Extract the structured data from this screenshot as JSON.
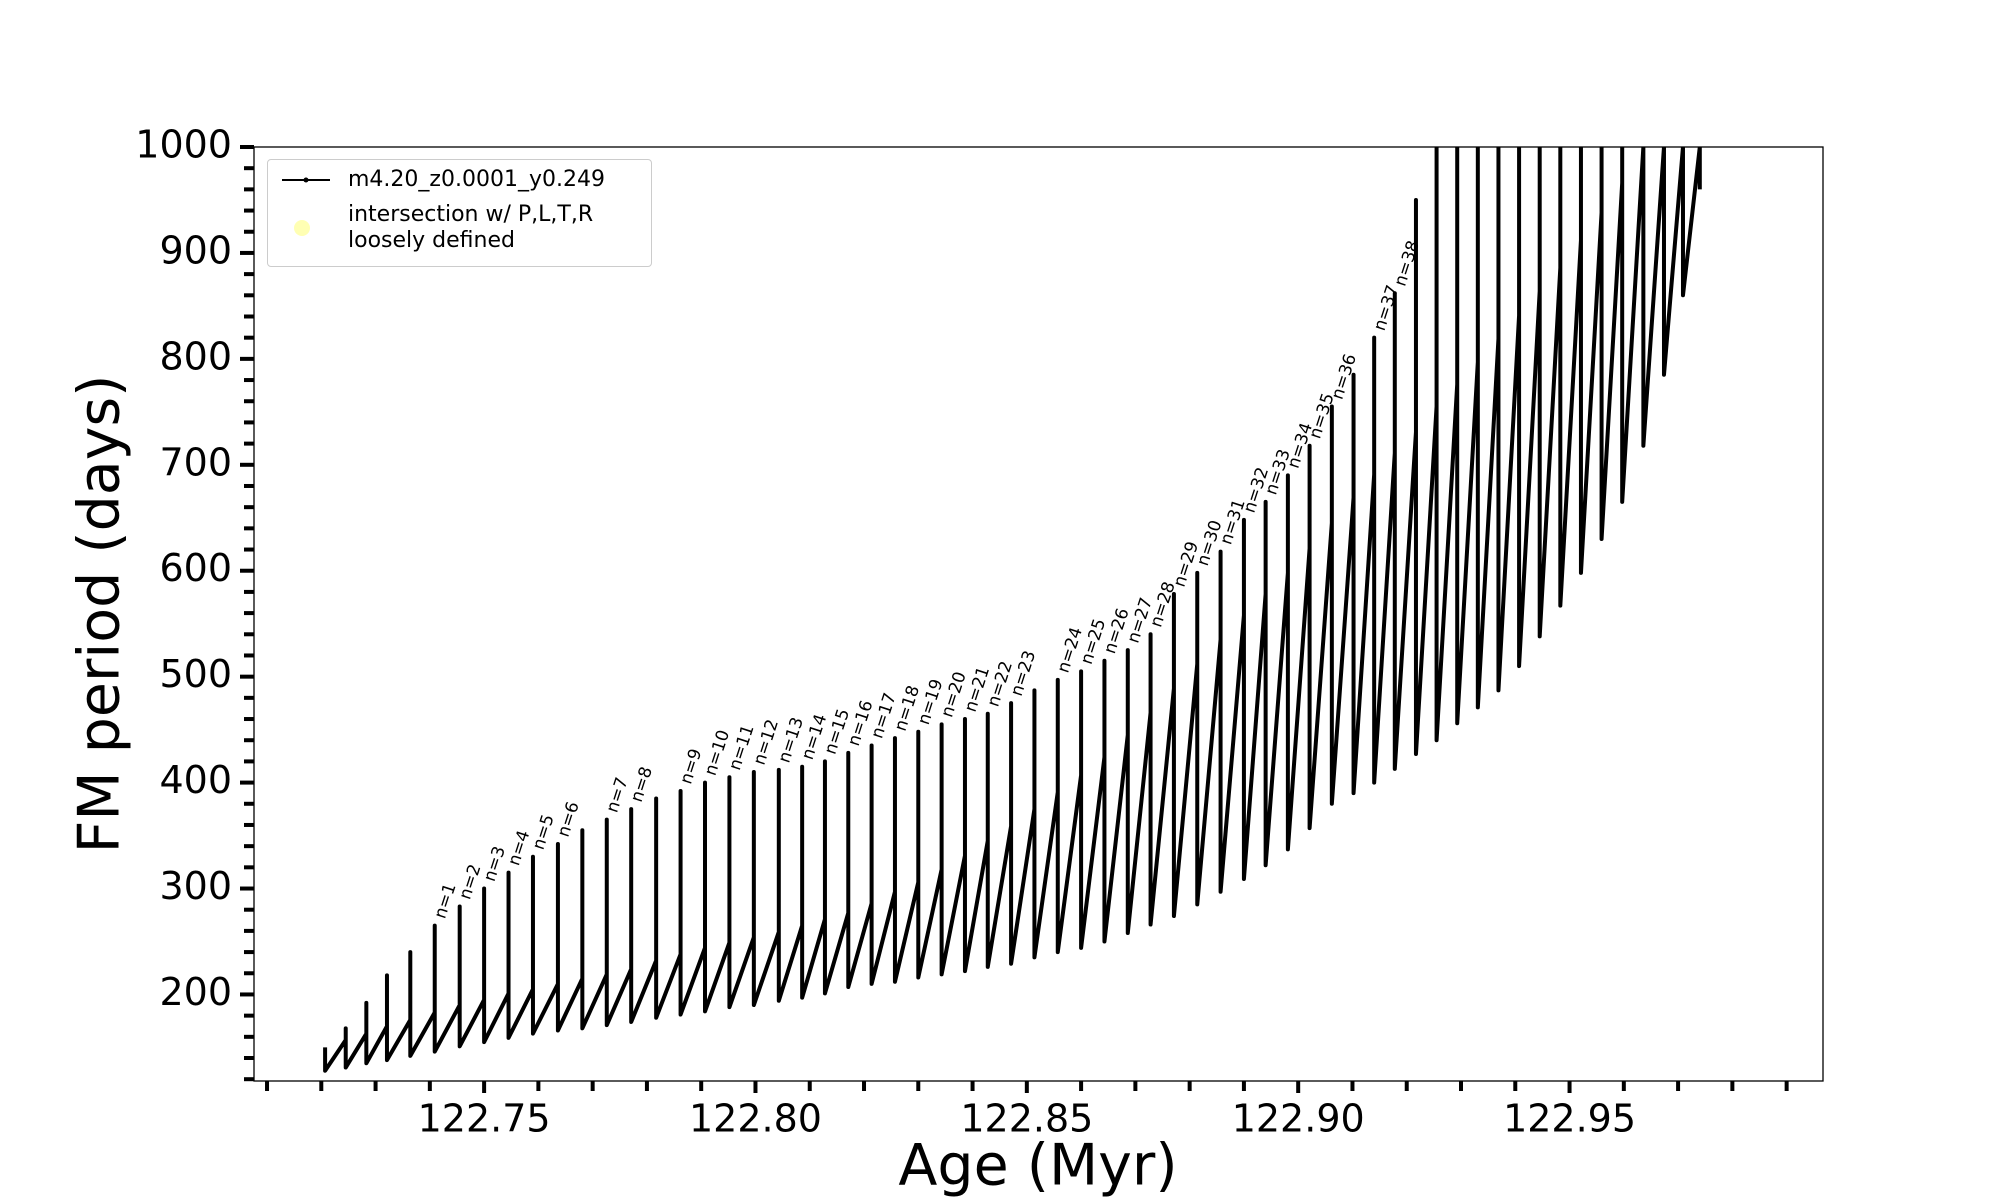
{
  "chart_data": {
    "type": "line",
    "xlabel": "Age (Myr)",
    "ylabel": "FM period (days)",
    "xlim": [
      122.7076,
      122.9967
    ],
    "ylim": [
      118.3,
      1000
    ],
    "xticks": [
      122.75,
      {
        "value": 122.8,
        "label": "122.80"
      },
      122.85,
      {
        "value": 122.9,
        "label": "122.90"
      },
      122.95
    ],
    "xminorticks": [
      122.71,
      122.72,
      122.73,
      122.74,
      122.76,
      122.77,
      122.78,
      122.79,
      122.81,
      122.82,
      122.83,
      122.84,
      122.86,
      122.87,
      122.88,
      122.89,
      122.91,
      122.92,
      122.93,
      122.94,
      122.96,
      122.97,
      122.98,
      122.99
    ],
    "yticks": [
      200,
      300,
      400,
      500,
      600,
      700,
      800,
      900,
      1000
    ],
    "yminorticks": [
      120,
      140,
      160,
      180,
      220,
      240,
      260,
      280,
      320,
      340,
      360,
      380,
      420,
      440,
      460,
      480,
      520,
      540,
      560,
      580,
      620,
      640,
      660,
      680,
      720,
      740,
      760,
      780,
      820,
      840,
      860,
      880,
      920,
      940,
      960,
      980
    ],
    "legend": "upper left",
    "series": [
      {
        "name": "m4.20_z0.0001_y0.249",
        "color": "#000000",
        "x": [
          122.7207,
          122.7207,
          122.7207,
          122.7245,
          122.7245,
          122.7245,
          122.7283,
          122.7283,
          122.7283,
          122.7321,
          122.7321,
          122.7321,
          122.7364,
          122.7364,
          122.7364,
          122.7409,
          122.7409,
          122.7409,
          122.7455,
          122.7455,
          122.7455,
          122.75,
          122.75,
          122.75,
          122.7545,
          122.7545,
          122.7545,
          122.759,
          122.759,
          122.759,
          122.7636,
          122.7636,
          122.7636,
          122.7681,
          122.7681,
          122.7681,
          122.7726,
          122.7726,
          122.7726,
          122.7771,
          122.7771,
          122.7771,
          122.7817,
          122.7817,
          122.7817,
          122.7862,
          122.7862,
          122.7862,
          122.7907,
          122.7907,
          122.7907,
          122.7952,
          122.7952,
          122.7952,
          122.7997,
          122.7997,
          122.7997,
          122.8043,
          122.8043,
          122.8043,
          122.8086,
          122.8086,
          122.8086,
          122.8128,
          122.8128,
          122.8128,
          122.8171,
          122.8171,
          122.8171,
          122.8214,
          122.8214,
          122.8214,
          122.8257,
          122.8257,
          122.8257,
          122.83,
          122.83,
          122.83,
          122.8343,
          122.8343,
          122.8343,
          122.8386,
          122.8386,
          122.8386,
          122.8428,
          122.8428,
          122.8428,
          122.8471,
          122.8471,
          122.8471,
          122.8514,
          122.8514,
          122.8514,
          122.8557,
          122.8557,
          122.8557,
          122.86,
          122.86,
          122.86,
          122.8643,
          122.8643,
          122.8643,
          122.8686,
          122.8686,
          122.8686,
          122.8728,
          122.8728,
          122.8728,
          122.8771,
          122.8771,
          122.8771,
          122.8814,
          122.8814,
          122.8814,
          122.8857,
          122.8857,
          122.8857,
          122.89,
          122.89,
          122.89,
          122.894,
          122.894,
          122.894,
          122.8981,
          122.8981,
          122.8981,
          122.9021,
          122.9021,
          122.9021,
          122.9062,
          122.9062,
          122.9062,
          122.9102,
          122.9102,
          122.9102,
          122.914,
          122.914,
          122.914,
          122.9178,
          122.9178,
          122.9178,
          122.9217,
          122.9217,
          122.9217,
          122.9255,
          122.9255,
          122.9255,
          122.9293,
          122.9293,
          122.9293,
          122.9331,
          122.9331,
          122.9331,
          122.9369,
          122.9369,
          122.9369,
          122.9407,
          122.9407,
          122.9407,
          122.9445,
          122.9445,
          122.9445,
          122.9483,
          122.9483,
          122.9483,
          122.9521,
          122.9521,
          122.9521,
          122.9559,
          122.9559,
          122.9559,
          122.9597,
          122.9597,
          122.9597,
          122.9636,
          122.9636,
          122.9636,
          122.9674,
          122.9674,
          122.9674,
          122.9709,
          122.9709,
          122.9709,
          122.974,
          122.974,
          122.974
        ],
        "values": [
          150,
          150,
          128,
          157,
          168,
          131,
          163,
          192,
          135,
          170,
          218,
          138,
          176,
          240,
          142,
          183,
          265,
          146,
          190,
          283,
          151,
          195,
          300,
          155,
          201,
          315,
          159,
          205,
          330,
          163,
          210,
          342,
          166,
          215,
          355,
          168,
          219,
          365,
          171,
          224,
          375,
          174,
          232,
          385,
          178,
          238,
          392,
          181,
          244,
          400,
          184,
          249,
          405,
          188,
          254,
          410,
          190,
          259,
          412,
          194,
          265,
          415,
          197,
          271,
          420,
          201,
          277,
          428,
          207,
          286,
          435,
          210,
          297,
          442,
          212,
          306,
          448,
          216,
          318,
          455,
          219,
          331,
          460,
          222,
          345,
          465,
          226,
          359,
          475,
          229,
          375,
          487,
          235,
          391,
          497,
          240,
          407,
          505,
          244,
          424,
          515,
          250,
          445,
          525,
          258,
          466,
          540,
          266,
          489,
          578,
          274,
          512,
          598,
          285,
          535,
          618,
          297,
          558,
          648,
          309,
          578,
          665,
          322,
          598,
          690,
          337,
          621,
          718,
          357,
          645,
          755,
          380,
          669,
          785,
          390,
          691,
          820,
          400,
          711,
          862,
          413,
          731,
          950,
          427,
          755,
          1000,
          440,
          776,
          1000,
          456,
          797,
          1000,
          471,
          819,
          1000,
          487,
          841,
          1000,
          510,
          864,
          1000,
          538,
          886,
          1000,
          567,
          912,
          1000,
          598,
          938,
          1000,
          630,
          966,
          1000,
          665,
          1000,
          1000,
          718,
          1000,
          1000,
          785,
          1000,
          1000,
          860,
          1000,
          1000,
          960
        ]
      },
      {
        "name": "intersection w/ P,L,T,R loosely defined",
        "color": "#ffffb3"
      }
    ],
    "annotations": [
      {
        "text": "n=1",
        "x": 122.7409,
        "y": 265
      },
      {
        "text": "n=2",
        "x": 122.7455,
        "y": 283
      },
      {
        "text": "n=3",
        "x": 122.75,
        "y": 300
      },
      {
        "text": "n=4",
        "x": 122.7545,
        "y": 315
      },
      {
        "text": "n=5",
        "x": 122.759,
        "y": 330
      },
      {
        "text": "n=6",
        "x": 122.7636,
        "y": 342
      },
      {
        "text": "n=7",
        "x": 122.7726,
        "y": 365
      },
      {
        "text": "n=8",
        "x": 122.7771,
        "y": 375
      },
      {
        "text": "n=9",
        "x": 122.7862,
        "y": 392
      },
      {
        "text": "n=10",
        "x": 122.7907,
        "y": 400
      },
      {
        "text": "n=11",
        "x": 122.7952,
        "y": 405
      },
      {
        "text": "n=12",
        "x": 122.7997,
        "y": 410
      },
      {
        "text": "n=13",
        "x": 122.8043,
        "y": 412
      },
      {
        "text": "n=14",
        "x": 122.8086,
        "y": 415
      },
      {
        "text": "n=15",
        "x": 122.8128,
        "y": 420
      },
      {
        "text": "n=16",
        "x": 122.8171,
        "y": 428
      },
      {
        "text": "n=17",
        "x": 122.8214,
        "y": 435
      },
      {
        "text": "n=18",
        "x": 122.8257,
        "y": 442
      },
      {
        "text": "n=19",
        "x": 122.83,
        "y": 448
      },
      {
        "text": "n=20",
        "x": 122.8343,
        "y": 455
      },
      {
        "text": "n=21",
        "x": 122.8386,
        "y": 460
      },
      {
        "text": "n=22",
        "x": 122.8428,
        "y": 465
      },
      {
        "text": "n=23",
        "x": 122.8471,
        "y": 475
      },
      {
        "text": "n=24",
        "x": 122.8557,
        "y": 497
      },
      {
        "text": "n=25",
        "x": 122.86,
        "y": 505
      },
      {
        "text": "n=26",
        "x": 122.8643,
        "y": 515
      },
      {
        "text": "n=27",
        "x": 122.8686,
        "y": 525
      },
      {
        "text": "n=28",
        "x": 122.8728,
        "y": 540
      },
      {
        "text": "n=29",
        "x": 122.8771,
        "y": 578
      },
      {
        "text": "n=30",
        "x": 122.8814,
        "y": 598
      },
      {
        "text": "n=31",
        "x": 122.8857,
        "y": 618
      },
      {
        "text": "n=32",
        "x": 122.89,
        "y": 648
      },
      {
        "text": "n=33",
        "x": 122.894,
        "y": 665
      },
      {
        "text": "n=34",
        "x": 122.8981,
        "y": 690
      },
      {
        "text": "n=35",
        "x": 122.9021,
        "y": 718
      },
      {
        "text": "n=36",
        "x": 122.9062,
        "y": 755
      },
      {
        "text": "n=37",
        "x": 122.914,
        "y": 820
      },
      {
        "text": "n=38",
        "x": 122.9178,
        "y": 862
      }
    ]
  }
}
